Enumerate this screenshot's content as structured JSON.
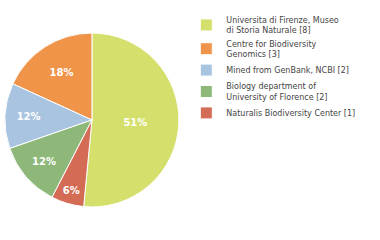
{
  "chart_data": {
    "type": "pie",
    "categories": [
      "Universita di Firenze, Museo\ndi Storia Naturale [8]",
      "Centre for Biodiversity\nGenomics [3]",
      "Mined from GenBank, NCBI [2]",
      "Biology department of\nUniversity of Florence [2]",
      "Naturalis Biodiversity Center [1]"
    ],
    "values": [
      51,
      18,
      12,
      12,
      6
    ],
    "value_labels": [
      "51%",
      "18%",
      "12%",
      "12%",
      "6%"
    ],
    "colors": [
      "#d4e06b",
      "#f0944a",
      "#a8c4e0",
      "#8db87a",
      "#d46b55"
    ],
    "data_labels": true,
    "legend": "upper right"
  }
}
